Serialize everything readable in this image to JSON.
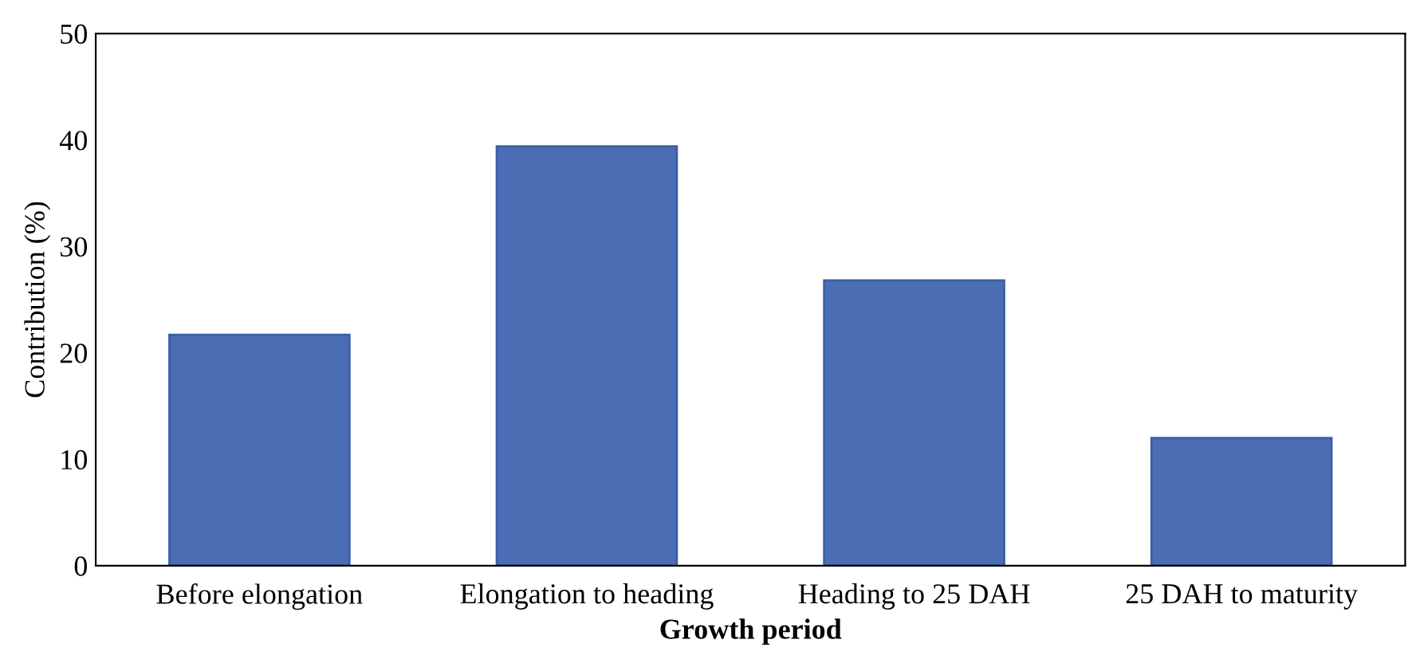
{
  "chart_data": {
    "type": "bar",
    "xlabel": "Growth period",
    "ylabel": "Contribution (%)",
    "categories": [
      "Before elongation",
      "Elongation to heading",
      "Heading to 25 DAH",
      "25 DAH to maturity"
    ],
    "values": [
      21.7,
      39.4,
      26.8,
      12.0
    ],
    "color": "#4a6db3",
    "ylim": [
      0,
      50
    ],
    "yticks": [
      0,
      10,
      20,
      30,
      40,
      50
    ],
    "grid": false,
    "legend": false
  }
}
